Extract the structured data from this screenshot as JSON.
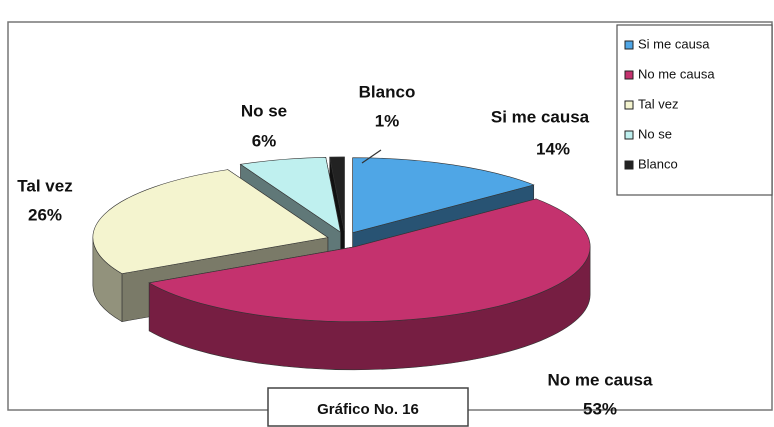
{
  "chart_data": {
    "type": "pie3d",
    "title": "Gráfico No. 16",
    "categories": [
      "Si me causa",
      "No me causa",
      "Tal vez",
      "No se",
      "Blanco"
    ],
    "values": [
      14,
      53,
      26,
      6,
      1
    ],
    "value_labels": [
      "14%",
      "53%",
      "26%",
      "6%",
      "1%"
    ],
    "colors": [
      "#4fa6e6",
      "#c4326e",
      "#f4f4cf",
      "#bff0ef",
      "#222222"
    ],
    "legend": "right"
  }
}
